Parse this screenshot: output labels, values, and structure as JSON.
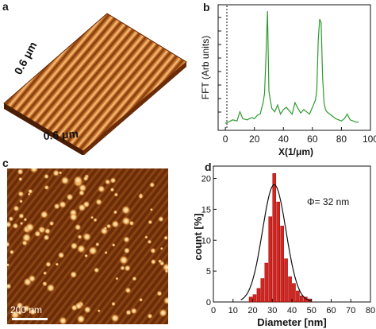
{
  "panels": {
    "a": {
      "label": "a",
      "dimension_left": "0.6 μm",
      "dimension_bottom": "0.6 μm"
    },
    "b": {
      "label": "b",
      "ylabel": "FFT (Arb units)",
      "xlabel": "X(1/μm)",
      "x_ticks": [
        "0",
        "20",
        "40",
        "60",
        "80",
        "100"
      ]
    },
    "c": {
      "label": "c",
      "scale_bar": "200 nm"
    },
    "d": {
      "label": "d",
      "ylabel": "count [%]",
      "xlabel": "Diameter [nm]",
      "annotation": "Φ= 32 nm",
      "x_ticks": [
        "0",
        "10",
        "20",
        "30",
        "40",
        "50",
        "60",
        "70",
        "80"
      ],
      "y_ticks": [
        "0",
        "5",
        "10",
        "15",
        "20"
      ]
    }
  },
  "colors": {
    "afm_dark": "#5a2406",
    "afm_light": "#f6c27a",
    "fft_line": "#2e9a2e",
    "histogram_bar": "#d8231e",
    "fit_curve": "#111111"
  },
  "chart_data": [
    {
      "type": "line",
      "panel": "b",
      "xlabel": "X(1/μm)",
      "ylabel": "FFT (Arb units)",
      "xlim": [
        -5,
        100
      ],
      "x": [
        0,
        2,
        5,
        8,
        10,
        12,
        15,
        18,
        20,
        22,
        24,
        26,
        27,
        28,
        29,
        30,
        31,
        32,
        34,
        36,
        38,
        40,
        42,
        44,
        46,
        48,
        50,
        52,
        54,
        56,
        58,
        60,
        62,
        63,
        64,
        65,
        66,
        67,
        68,
        69,
        70,
        72,
        74,
        76,
        78,
        80,
        82,
        84,
        86,
        88,
        90,
        92
      ],
      "y": [
        0.02,
        0.03,
        0.05,
        0.04,
        0.12,
        0.06,
        0.05,
        0.07,
        0.06,
        0.09,
        0.1,
        0.2,
        0.28,
        0.6,
        1.0,
        0.3,
        0.22,
        0.15,
        0.12,
        0.18,
        0.1,
        0.14,
        0.16,
        0.13,
        0.1,
        0.2,
        0.15,
        0.11,
        0.14,
        0.12,
        0.1,
        0.16,
        0.22,
        0.3,
        0.75,
        0.93,
        0.9,
        0.42,
        0.2,
        0.14,
        0.12,
        0.1,
        0.08,
        0.06,
        0.05,
        0.04,
        0.06,
        0.1,
        0.05,
        0.04,
        0.03,
        0.03
      ]
    },
    {
      "type": "bar",
      "panel": "d",
      "xlabel": "Diameter [nm]",
      "ylabel": "count [%]",
      "xlim": [
        0,
        80
      ],
      "ylim": [
        0,
        22
      ],
      "bin_centers": [
        19,
        21,
        23,
        25,
        27,
        29,
        31,
        33,
        35,
        37,
        39,
        41,
        43,
        45,
        47,
        49
      ],
      "values": [
        0.8,
        1.2,
        2.2,
        3.8,
        6.3,
        13.8,
        20.8,
        16.2,
        12.3,
        7.0,
        4.1,
        3.0,
        1.8,
        1.0,
        0.8,
        0.5
      ],
      "fit": {
        "type": "gaussian",
        "mean": 31,
        "sigma": 6,
        "peak": 19
      }
    }
  ]
}
